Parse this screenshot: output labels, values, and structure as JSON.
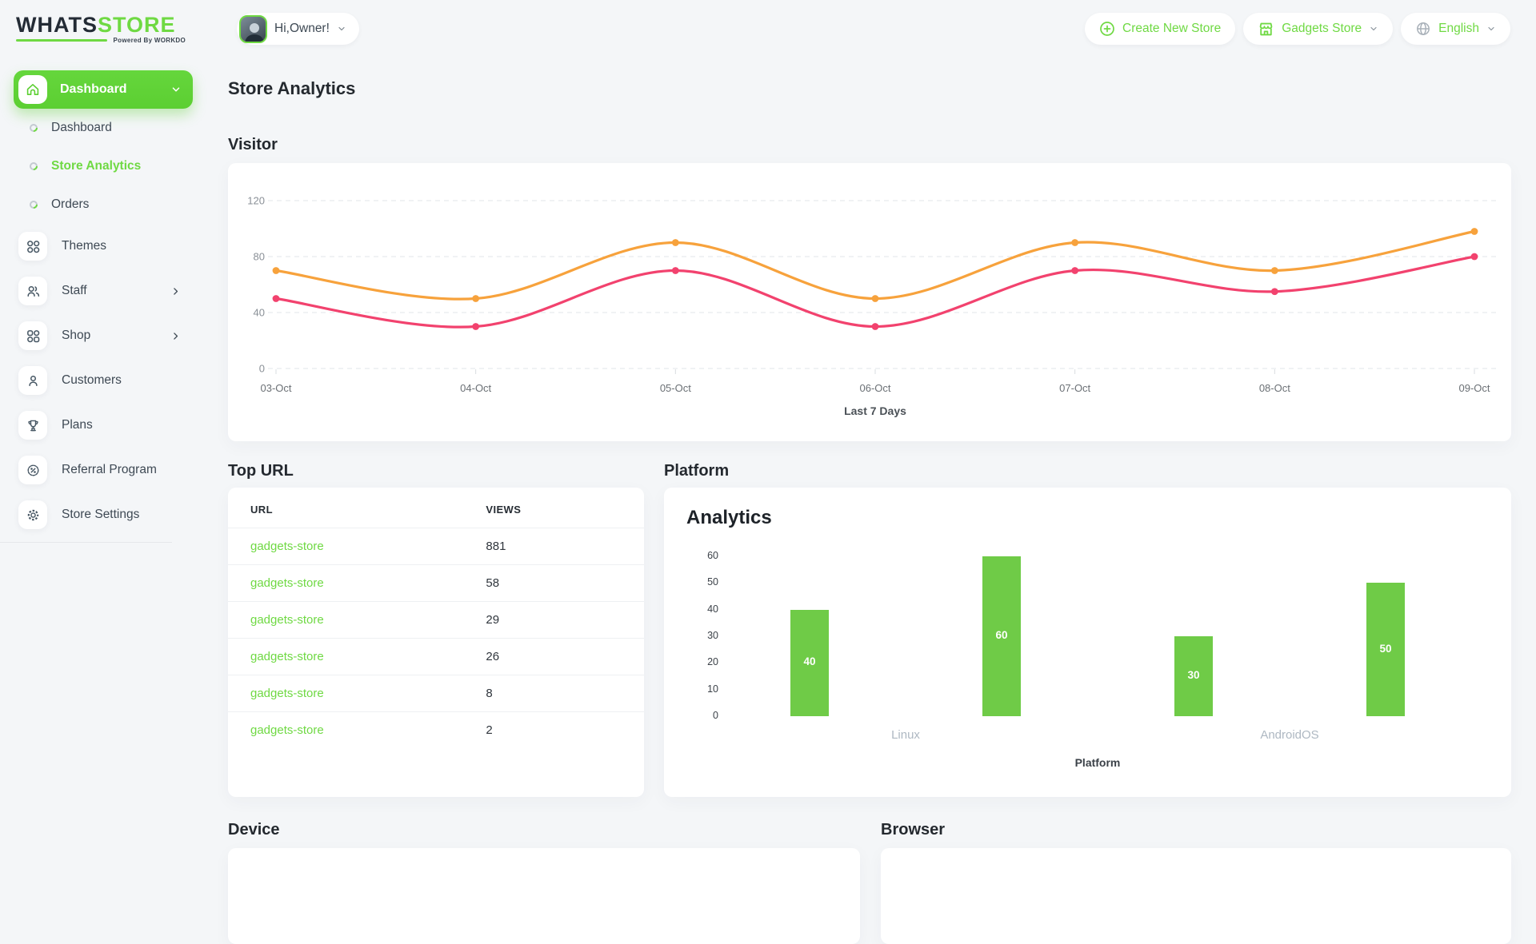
{
  "brand": {
    "name_primary": "WHATS",
    "name_secondary": "STORE",
    "powered_by": "Powered By WORKDO",
    "accent_color": "#6fd943",
    "dark_color": "#232b35"
  },
  "header": {
    "greeting": "Hi,Owner!",
    "create_store_label": "Create New Store",
    "store_selector_label": "Gadgets Store",
    "language_label": "English"
  },
  "sidebar": {
    "group_label": "Dashboard",
    "sub_items": [
      {
        "label": "Dashboard",
        "active": false
      },
      {
        "label": "Store Analytics",
        "active": true
      },
      {
        "label": "Orders",
        "active": false
      }
    ],
    "items": [
      {
        "label": "Themes",
        "icon": "grid-icon",
        "has_submenu": false
      },
      {
        "label": "Staff",
        "icon": "users-icon",
        "has_submenu": true
      },
      {
        "label": "Shop",
        "icon": "grid-icon",
        "has_submenu": true
      },
      {
        "label": "Customers",
        "icon": "user-icon",
        "has_submenu": false
      },
      {
        "label": "Plans",
        "icon": "trophy-icon",
        "has_submenu": false
      },
      {
        "label": "Referral Program",
        "icon": "discount-badge-icon",
        "has_submenu": false
      },
      {
        "label": "Store Settings",
        "icon": "gear-icon",
        "has_submenu": false
      }
    ]
  },
  "page": {
    "title": "Store Analytics"
  },
  "sections": {
    "visitor": "Visitor",
    "top_url": "Top URL",
    "platform": "Platform",
    "device": "Device",
    "browser": "Browser"
  },
  "top_url_table": {
    "headers": [
      "URL",
      "VIEWS"
    ],
    "rows": [
      {
        "url": "gadgets-store",
        "views": "881"
      },
      {
        "url": "gadgets-store",
        "views": "58"
      },
      {
        "url": "gadgets-store",
        "views": "29"
      },
      {
        "url": "gadgets-store",
        "views": "26"
      },
      {
        "url": "gadgets-store",
        "views": "8"
      },
      {
        "url": "gadgets-store",
        "views": "2"
      }
    ]
  },
  "chart_data": [
    {
      "type": "line",
      "title": "Visitor",
      "x": [
        "03-Oct",
        "04-Oct",
        "05-Oct",
        "06-Oct",
        "07-Oct",
        "08-Oct",
        "09-Oct"
      ],
      "series": [
        {
          "name": "visitors-series-1",
          "color": "#f7a23c",
          "values": [
            70,
            50,
            90,
            50,
            90,
            70,
            98
          ]
        },
        {
          "name": "visitors-series-2",
          "color": "#f2426e",
          "values": [
            50,
            30,
            70,
            30,
            70,
            55,
            80
          ]
        }
      ],
      "xlabel": "Last 7 Days",
      "ylim": [
        0,
        120
      ],
      "yticks": [
        0,
        40,
        80,
        120
      ],
      "grid": "dashed-horizontal",
      "legend": "none",
      "smooth": true,
      "markers": true
    },
    {
      "type": "bar",
      "title": "Analytics",
      "categories": [
        "Linux",
        "AndroidOS"
      ],
      "series_values": [
        [
          40,
          60
        ],
        [
          30,
          50
        ]
      ],
      "bar_color": "#6fcb47",
      "data_labels": [
        40,
        60,
        30,
        50
      ],
      "xlabel": "Platform",
      "ylim": [
        0,
        60
      ],
      "yticks": [
        0,
        10,
        20,
        30,
        40,
        50,
        60
      ],
      "grid": "off",
      "legend": "none"
    }
  ]
}
